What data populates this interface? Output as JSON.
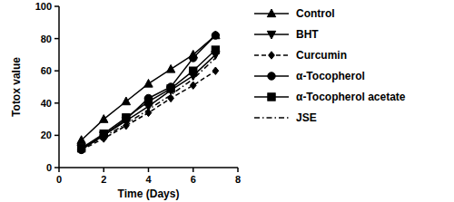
{
  "chart_data": {
    "type": "line",
    "x_label": "Time (Days)",
    "y_label": "Totox value",
    "x": [
      1,
      2,
      3,
      4,
      5,
      6,
      7
    ],
    "xlim": [
      0,
      8
    ],
    "xticks": [
      0,
      2,
      4,
      6,
      8
    ],
    "ylim": [
      0,
      100
    ],
    "yticks": [
      0,
      20,
      40,
      60,
      80,
      100
    ],
    "grid": false,
    "legend": "right",
    "series": [
      {
        "name": "Control",
        "color": "#000000",
        "marker": "triangle",
        "line_style": "solid",
        "values": [
          17,
          30,
          41,
          52,
          61,
          70,
          82
        ]
      },
      {
        "name": "BHT",
        "color": "#000000",
        "marker": "triangle-down",
        "line_style": "solid",
        "values": [
          12,
          20,
          29,
          38,
          48,
          57,
          70
        ]
      },
      {
        "name": "Curcumin",
        "color": "#000000",
        "marker": "diamond",
        "line_style": "dashed",
        "values": [
          11,
          18,
          26,
          34,
          43,
          51,
          60
        ]
      },
      {
        "name": "α-Tocopherol",
        "color": "#000000",
        "marker": "circle",
        "line_style": "solid",
        "values": [
          11,
          20,
          30,
          43,
          50,
          68,
          82
        ]
      },
      {
        "name": "α-Tocopherol acetate",
        "color": "#000000",
        "marker": "square",
        "line_style": "solid",
        "values": [
          12,
          21,
          31,
          41,
          49,
          60,
          73
        ]
      },
      {
        "name": "JSE",
        "color": "#000000",
        "marker": "none",
        "line_style": "dashdot",
        "values": [
          12,
          19,
          27,
          36,
          45,
          55,
          68
        ]
      }
    ]
  }
}
